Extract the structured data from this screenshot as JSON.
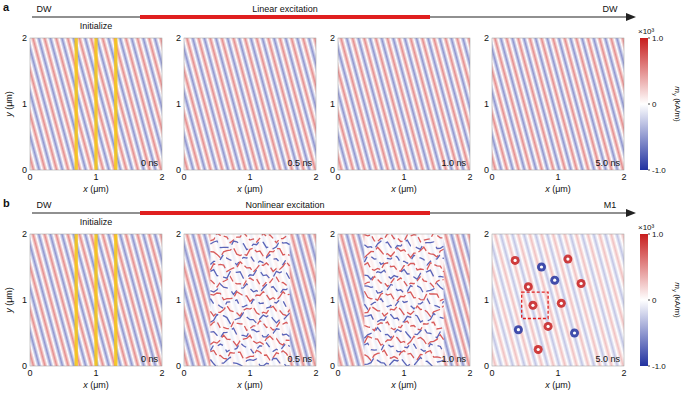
{
  "chart_data": {
    "type": "heatmap",
    "xlim": [
      0,
      2
    ],
    "ylim": [
      0,
      2
    ],
    "xticks": [
      0,
      1,
      2
    ],
    "yticks": [
      0,
      1,
      2
    ],
    "x_label": {
      "symbol": "x",
      "unit": "(μm)"
    },
    "y_label": {
      "symbol": "y",
      "unit": "(μm)"
    },
    "wavelength": 0.17,
    "init_width": 0.05,
    "colorbar": {
      "range": [
        -1,
        1
      ],
      "ticks": [
        {
          "value": -1,
          "label": "-1.0"
        },
        0,
        {
          "value": 1,
          "label": "1.0"
        }
      ],
      "multiplier": "×10³",
      "label": {
        "symbol": "m",
        "subscript": "y",
        "unit": "(kA/m)"
      }
    },
    "rows": [
      {
        "letter": "a",
        "type": "linear",
        "timeline": {
          "start": "DW",
          "init": "Initialize",
          "excitation": "Linear excitation",
          "end": "DW"
        },
        "panels": [
          {
            "time": "0 ns",
            "init_regions": [
              0.7,
              1.0,
              1.3
            ]
          },
          {
            "time": "0.5 ns"
          },
          {
            "time": "1.0 ns"
          },
          {
            "time": "5.0 ns"
          }
        ]
      },
      {
        "letter": "b",
        "type": "nonlinear",
        "timeline": {
          "start": "DW",
          "init": "Initialize",
          "excitation": "Nonlinear excitation",
          "end": "M1"
        },
        "panels": [
          {
            "time": "0 ns",
            "init_regions": [
              0.7,
              1.0,
              1.3
            ]
          },
          {
            "time": "0.5 ns"
          },
          {
            "time": "1.0 ns"
          },
          {
            "time": "5.0 ns",
            "features": [
              {
                "x": 0.35,
                "y": 1.6,
                "m": 1
              },
              {
                "x": 0.75,
                "y": 1.5,
                "m": -1
              },
              {
                "x": 1.15,
                "y": 1.62,
                "m": 1
              },
              {
                "x": 0.55,
                "y": 1.2,
                "m": 1
              },
              {
                "x": 0.95,
                "y": 1.3,
                "m": -1
              },
              {
                "x": 1.35,
                "y": 1.25,
                "m": 1
              },
              {
                "x": 0.62,
                "y": 0.92,
                "m": 1
              },
              {
                "x": 1.05,
                "y": 0.95,
                "m": 1
              },
              {
                "x": 0.4,
                "y": 0.55,
                "m": -1
              },
              {
                "x": 0.85,
                "y": 0.6,
                "m": 1
              },
              {
                "x": 1.25,
                "y": 0.5,
                "m": -1
              },
              {
                "x": 0.7,
                "y": 0.25,
                "m": 1
              }
            ],
            "highlight": {
              "x": [
                0.45,
                0.85
              ],
              "y": [
                0.72,
                1.12
              ]
            }
          }
        ]
      }
    ]
  }
}
